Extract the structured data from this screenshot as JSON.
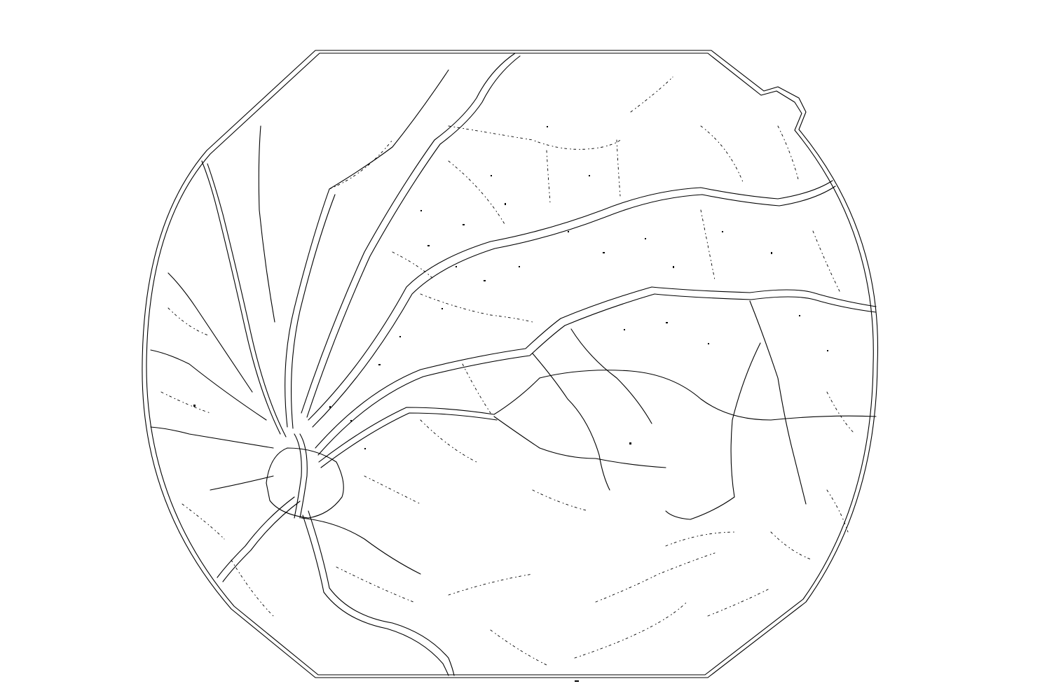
{
  "image": {
    "subject": "retinal-fundus-edge-map",
    "ink_color": "#000000",
    "background_color": "#ffffff"
  }
}
